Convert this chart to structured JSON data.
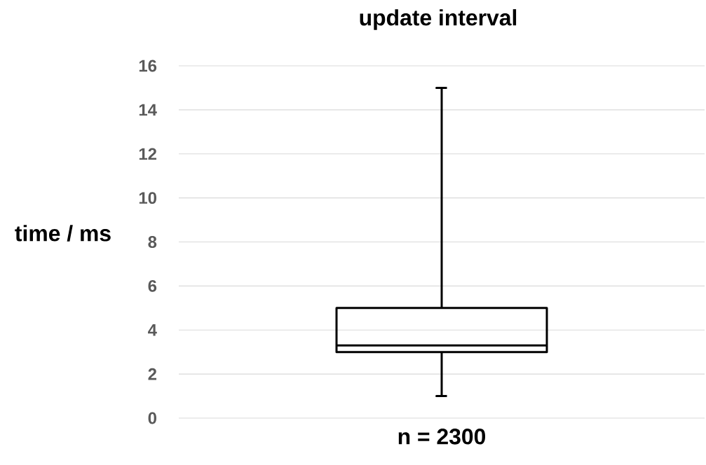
{
  "chart_data": {
    "type": "box",
    "title": "update interval",
    "ylabel": "time / ms",
    "categories": [
      "n = 2300"
    ],
    "boxes": [
      {
        "low": 1,
        "q1": 3,
        "median": 3.3,
        "q3": 5,
        "high": 15
      }
    ],
    "color": "#000000",
    "ylim": [
      0,
      16
    ],
    "yticks": [
      0,
      2,
      4,
      6,
      8,
      10,
      12,
      14,
      16
    ],
    "grid": "y"
  }
}
